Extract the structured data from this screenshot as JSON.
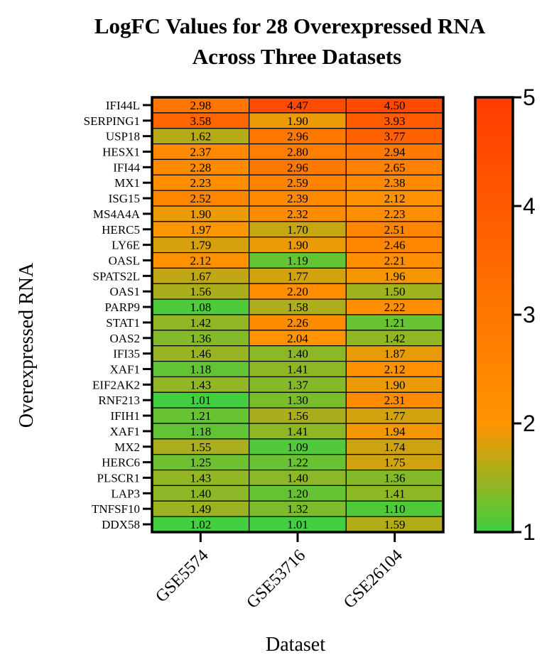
{
  "chart_data": {
    "type": "heatmap",
    "title_lines": [
      "LogFC Values for 28 Overexpressed RNA",
      "Across Three Datasets"
    ],
    "xlabel": "Dataset",
    "ylabel": "Overexpressed RNA",
    "columns": [
      "GSE5574",
      "GSE53716",
      "GSE26104"
    ],
    "rows": [
      "IFI44L",
      "SERPING1",
      "USP18",
      "HESX1",
      "IFI44",
      "MX1",
      "ISG15",
      "MS4A4A",
      "HERC5",
      "LY6E",
      "OASL",
      "SPATS2L",
      "OAS1",
      "PARP9",
      "STAT1",
      "OAS2",
      "IFI35",
      "XAF1",
      "EIF2AK2",
      "RNF213",
      "IFIH1",
      "XAF1",
      "MX2",
      "HERC6",
      "PLSCR1",
      "LAP3",
      "TNFSF10",
      "DDX58"
    ],
    "values": [
      [
        2.98,
        4.47,
        4.5
      ],
      [
        3.58,
        1.9,
        3.93
      ],
      [
        1.62,
        2.96,
        3.77
      ],
      [
        2.37,
        2.8,
        2.94
      ],
      [
        2.28,
        2.96,
        2.65
      ],
      [
        2.23,
        2.59,
        2.38
      ],
      [
        2.52,
        2.39,
        2.12
      ],
      [
        1.9,
        2.32,
        2.23
      ],
      [
        1.97,
        1.7,
        2.51
      ],
      [
        1.79,
        1.9,
        2.46
      ],
      [
        2.12,
        1.19,
        2.21
      ],
      [
        1.67,
        1.77,
        1.96
      ],
      [
        1.56,
        2.2,
        1.5
      ],
      [
        1.08,
        1.58,
        2.22
      ],
      [
        1.42,
        2.26,
        1.21
      ],
      [
        1.36,
        2.04,
        1.42
      ],
      [
        1.46,
        1.4,
        1.87
      ],
      [
        1.18,
        1.41,
        2.12
      ],
      [
        1.43,
        1.37,
        1.9
      ],
      [
        1.01,
        1.3,
        2.31
      ],
      [
        1.21,
        1.56,
        1.77
      ],
      [
        1.18,
        1.41,
        1.94
      ],
      [
        1.55,
        1.09,
        1.74
      ],
      [
        1.25,
        1.22,
        1.75
      ],
      [
        1.43,
        1.4,
        1.36
      ],
      [
        1.4,
        1.2,
        1.41
      ],
      [
        1.49,
        1.32,
        1.1
      ],
      [
        1.02,
        1.01,
        1.59
      ]
    ],
    "color_scale": {
      "range": [
        1,
        5
      ],
      "ticks": [
        1,
        2,
        3,
        4,
        5
      ],
      "stops": [
        "#3fcf40",
        "#ff9400",
        "#ff3c00"
      ],
      "stop_values": [
        1,
        2,
        5
      ]
    }
  }
}
